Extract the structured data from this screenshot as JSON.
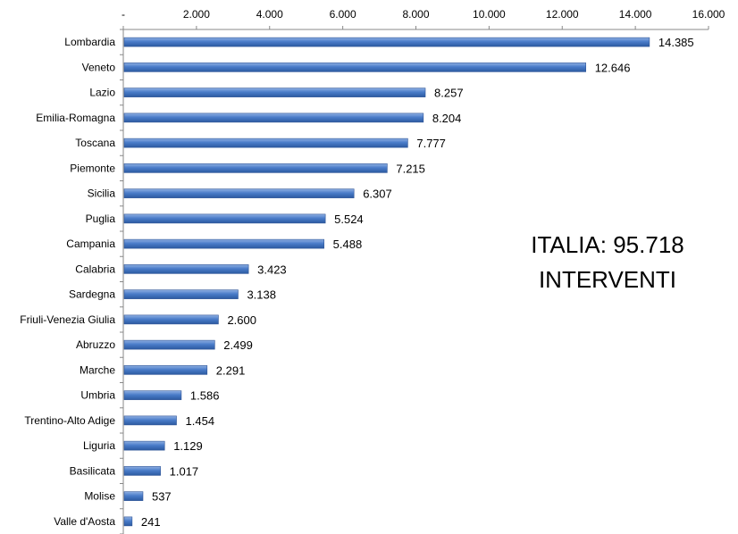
{
  "chart_data": {
    "type": "bar",
    "orientation": "horizontal",
    "categories": [
      "Lombardia",
      "Veneto",
      "Lazio",
      "Emilia-Romagna",
      "Toscana",
      "Piemonte",
      "Sicilia",
      "Puglia",
      "Campania",
      "Calabria",
      "Sardegna",
      "Friuli-Venezia Giulia",
      "Abruzzo",
      "Marche",
      "Umbria",
      "Trentino-Alto Adige",
      "Liguria",
      "Basilicata",
      "Molise",
      "Valle d'Aosta"
    ],
    "values": [
      14385,
      12646,
      8257,
      8204,
      7777,
      7215,
      6307,
      5524,
      5488,
      3423,
      3138,
      2600,
      2499,
      2291,
      1586,
      1454,
      1129,
      1017,
      537,
      241
    ],
    "value_labels": [
      "14.385",
      "12.646",
      "8.257",
      "8.204",
      "7.777",
      "7.215",
      "6.307",
      "5.524",
      "5.488",
      "3.423",
      "3.138",
      "2.600",
      "2.499",
      "2.291",
      "1.586",
      "1.454",
      "1.129",
      "1.017",
      "537",
      "241"
    ],
    "xlim": [
      0,
      16000
    ],
    "x_ticks": [
      0,
      2000,
      4000,
      6000,
      8000,
      10000,
      12000,
      14000,
      16000
    ],
    "x_tick_labels": [
      "-",
      "2.000",
      "4.000",
      "6.000",
      "8.000",
      "10.000",
      "12.000",
      "14.000",
      "16.000"
    ],
    "x_axis_position": "top",
    "grid": false,
    "bar_color": "#4a7cc9",
    "annotation": {
      "lines": [
        "ITALIA: 95.718",
        "INTERVENTI"
      ],
      "color": "#f5b800"
    }
  }
}
